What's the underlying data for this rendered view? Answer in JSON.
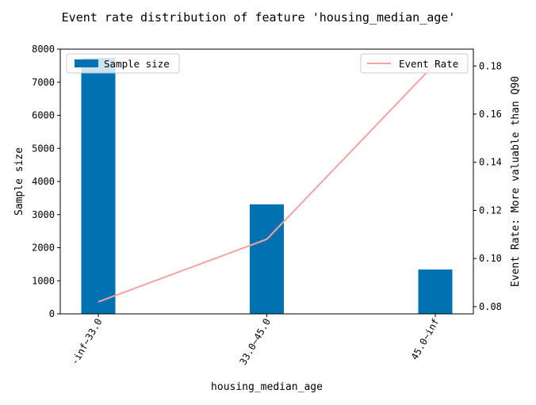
{
  "chart_data": {
    "type": "bar",
    "title": "Event rate distribution of feature 'housing_median_age'",
    "xlabel": "housing_median_age",
    "ylabel": "Sample size",
    "y2label": "Event Rate: More valuable than Q90",
    "categories": [
      "-inf~33.0",
      "33.0~45.0",
      "45.0~inf"
    ],
    "series": [
      {
        "name": "Sample size",
        "axis": "left",
        "type": "bar",
        "color": "#0072b2",
        "values": [
          7730,
          3310,
          1340
        ]
      },
      {
        "name": "Event Rate",
        "axis": "right",
        "type": "line",
        "color": "#f4a3a3",
        "values": [
          0.082,
          0.108,
          0.181
        ]
      }
    ],
    "ylim": [
      0,
      8000
    ],
    "y2lim": [
      0.077,
      0.187
    ],
    "yticks": [
      0,
      1000,
      2000,
      3000,
      4000,
      5000,
      6000,
      7000,
      8000
    ],
    "y2ticks": [
      0.08,
      0.1,
      0.12,
      0.14,
      0.16,
      0.18
    ],
    "y2tick_labels": [
      "0.08",
      "0.10",
      "0.12",
      "0.14",
      "0.16",
      "0.18"
    ],
    "legend_left_position": "upper-left",
    "legend_right_position": "upper-right",
    "grid": false
  }
}
